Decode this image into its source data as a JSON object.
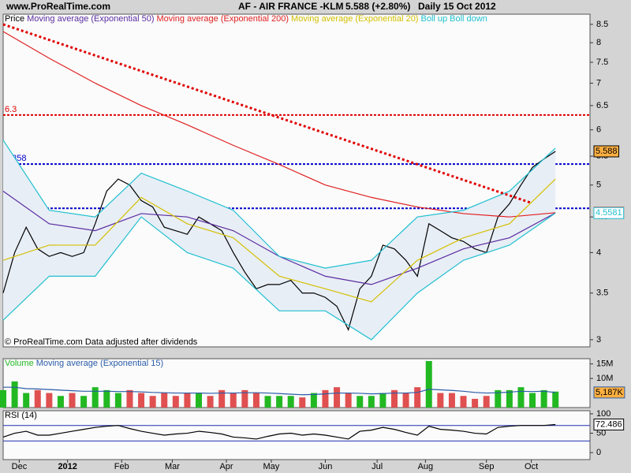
{
  "header": {
    "site": "www.ProRealTime.com",
    "symbol": "AF - AIR FRANCE -KLM",
    "quote": "5.588 (+2.80%)",
    "period": "Daily  15 Oct 2012"
  },
  "footer": "© ProRealTime.com  Data adjusted after dividends",
  "chart_data": [
    {
      "type": "line",
      "log_scale": true,
      "ylim": [
        2.93,
        8.79
      ],
      "yticks": [
        3,
        3.5,
        4,
        4.5,
        5,
        5.5,
        6,
        6.5,
        7,
        7.5,
        8,
        8.5
      ],
      "xlim": [
        0,
        51
      ],
      "xticks": [
        {
          "value": 1.4,
          "label": "Dec"
        },
        {
          "value": 5.6,
          "label": "2012"
        },
        {
          "value": 10.3,
          "label": "Feb"
        },
        {
          "value": 14.7,
          "label": "Mar"
        },
        {
          "value": 19.4,
          "label": "Apr"
        },
        {
          "value": 23.3,
          "label": "May"
        },
        {
          "value": 28,
          "label": "Jun"
        },
        {
          "value": 32.5,
          "label": "Jul"
        },
        {
          "value": 36.7,
          "label": "Aug"
        },
        {
          "value": 42,
          "label": "Sep"
        },
        {
          "value": 45.9,
          "label": "Oct"
        }
      ],
      "series": [
        {
          "name": "Price",
          "color": "#000000",
          "end_label": true,
          "x": [
            0,
            1,
            2,
            3,
            4,
            5,
            6,
            7,
            8,
            9,
            10,
            11,
            12,
            13,
            14,
            15,
            16,
            17,
            18,
            19,
            20,
            21,
            22,
            23,
            24,
            25,
            26,
            27,
            28,
            29,
            30,
            31,
            32,
            33,
            34,
            35,
            36,
            37,
            38,
            39,
            40,
            41,
            42,
            43,
            44,
            45,
            46,
            47,
            48
          ],
          "values": [
            3.5,
            4.0,
            4.35,
            4.05,
            3.95,
            4.0,
            3.95,
            4.0,
            4.4,
            4.9,
            5.1,
            5.0,
            4.75,
            4.65,
            4.35,
            4.3,
            4.25,
            4.5,
            4.4,
            4.3,
            4.0,
            3.75,
            3.55,
            3.6,
            3.6,
            3.65,
            3.5,
            3.5,
            3.45,
            3.35,
            3.1,
            3.55,
            3.7,
            4.1,
            4.05,
            3.9,
            3.7,
            4.4,
            4.3,
            4.2,
            4.15,
            4.05,
            4.0,
            4.5,
            4.7,
            5.0,
            5.3,
            5.45,
            5.588
          ]
        },
        {
          "name": "Moving average (Exponential 50)",
          "color": "#5a2ca0",
          "x": [
            0,
            4,
            8,
            12,
            16,
            20,
            24,
            28,
            32,
            36,
            40,
            44,
            48
          ],
          "values": [
            4.9,
            4.4,
            4.3,
            4.55,
            4.5,
            4.3,
            3.95,
            3.7,
            3.6,
            3.8,
            4.05,
            4.2,
            4.56
          ]
        },
        {
          "name": "Moving average (Exponential 200)",
          "color": "#e02020",
          "end_label": true,
          "x": [
            0,
            4,
            8,
            12,
            16,
            20,
            24,
            28,
            32,
            36,
            40,
            44,
            48
          ],
          "values": [
            8.3,
            7.6,
            7.0,
            6.5,
            6.1,
            5.7,
            5.35,
            5.0,
            4.8,
            4.65,
            4.55,
            4.5,
            4.5633
          ]
        },
        {
          "name": "Moving average (Exponential 20)",
          "color": "#d4c000",
          "x": [
            0,
            4,
            8,
            12,
            16,
            20,
            24,
            28,
            32,
            36,
            40,
            44,
            48
          ],
          "values": [
            3.9,
            4.1,
            4.1,
            4.8,
            4.4,
            4.2,
            3.7,
            3.55,
            3.4,
            3.9,
            4.2,
            4.4,
            5.1
          ]
        },
        {
          "name": "Boll up",
          "color": "#20c0d0",
          "x": [
            0,
            4,
            8,
            12,
            16,
            20,
            24,
            28,
            32,
            36,
            40,
            44,
            48
          ],
          "values": [
            5.8,
            4.6,
            4.5,
            5.2,
            4.9,
            4.6,
            3.95,
            3.8,
            3.9,
            4.5,
            4.6,
            4.9,
            5.65
          ]
        },
        {
          "name": "Boll down",
          "color": "#20c0d0",
          "end_label": true,
          "x": [
            0,
            4,
            8,
            12,
            16,
            20,
            24,
            28,
            32,
            36,
            40,
            44,
            48
          ],
          "values": [
            3.2,
            3.7,
            3.7,
            4.5,
            4.0,
            3.8,
            3.3,
            3.3,
            3.0,
            3.5,
            3.9,
            4.1,
            4.5581
          ]
        }
      ],
      "trendline": {
        "color": "#e00000",
        "x": [
          0,
          45.8
        ],
        "values": [
          8.5,
          4.72
        ]
      },
      "levels": [
        {
          "value": 6.3,
          "color": "#e00000"
        },
        {
          "value": 5.358,
          "color": "#0000cc"
        },
        {
          "value": 4.63,
          "color": "#0000cc"
        }
      ],
      "level_labels": true
    },
    {
      "type": "bar",
      "ylim": [
        0,
        16.8
      ],
      "yticks": [
        {
          "value": 10,
          "label": "10M"
        },
        {
          "value": 15,
          "label": "15M"
        }
      ],
      "up_color": "#22b822",
      "down_color": "#e05050",
      "series": [
        {
          "name": "Volume",
          "color": "#22b822",
          "values": [
            6,
            9,
            5,
            6,
            5,
            4,
            5,
            4,
            7,
            6,
            5,
            6,
            5,
            4,
            5,
            4,
            5,
            5,
            4,
            6,
            5,
            6,
            5,
            4,
            4,
            4,
            3.5,
            5,
            6,
            7,
            5,
            4,
            4,
            5,
            6,
            5,
            7,
            16,
            5,
            5,
            4,
            3,
            4,
            6,
            6,
            7,
            5,
            6,
            5.5
          ]
        },
        {
          "name": "Moving average (Exponential 15)",
          "color": "#2a5ca8",
          "end_label": true,
          "values": [
            7,
            7,
            6.5,
            6.4,
            6.2,
            6,
            5.8,
            5.6,
            5.6,
            5.6,
            5.5,
            5.5,
            5.4,
            5.2,
            5.1,
            5,
            5,
            5,
            4.9,
            5,
            5,
            5.1,
            5.1,
            5,
            4.8,
            4.6,
            4.4,
            4.5,
            4.7,
            5,
            5,
            4.9,
            4.7,
            4.8,
            5,
            5,
            5.2,
            6.3,
            6.1,
            5.9,
            5.6,
            5.2,
            5,
            5.1,
            5.3,
            5.6,
            5.5,
            5.6,
            5.187
          ],
          "value_labels": [
            null,
            null,
            null,
            null,
            null,
            null,
            null,
            null,
            null,
            null,
            null,
            null,
            null,
            null,
            null,
            null,
            null,
            null,
            null,
            null,
            null,
            null,
            null,
            null,
            null,
            null,
            null,
            null,
            null,
            null,
            null,
            null,
            null,
            null,
            null,
            null,
            null,
            null,
            null,
            null,
            null,
            null,
            null,
            null,
            null,
            null,
            null,
            null,
            "5,187K"
          ]
        }
      ]
    },
    {
      "type": "line",
      "ylim": [
        -18,
        108
      ],
      "yticks": [
        0,
        50,
        100
      ],
      "levels": [
        {
          "value": 30,
          "color": "#2030b0"
        },
        {
          "value": 70,
          "color": "#2030b0"
        }
      ],
      "series": [
        {
          "name": "RSI (14)",
          "color": "#000000",
          "end_label": true,
          "values": [
            40,
            50,
            55,
            45,
            45,
            50,
            55,
            60,
            65,
            68,
            70,
            62,
            55,
            50,
            45,
            48,
            50,
            55,
            52,
            48,
            40,
            38,
            35,
            42,
            48,
            50,
            45,
            48,
            45,
            40,
            35,
            55,
            58,
            65,
            60,
            52,
            45,
            68,
            60,
            58,
            55,
            50,
            48,
            65,
            68,
            70,
            70,
            70,
            72.486
          ]
        }
      ]
    }
  ]
}
